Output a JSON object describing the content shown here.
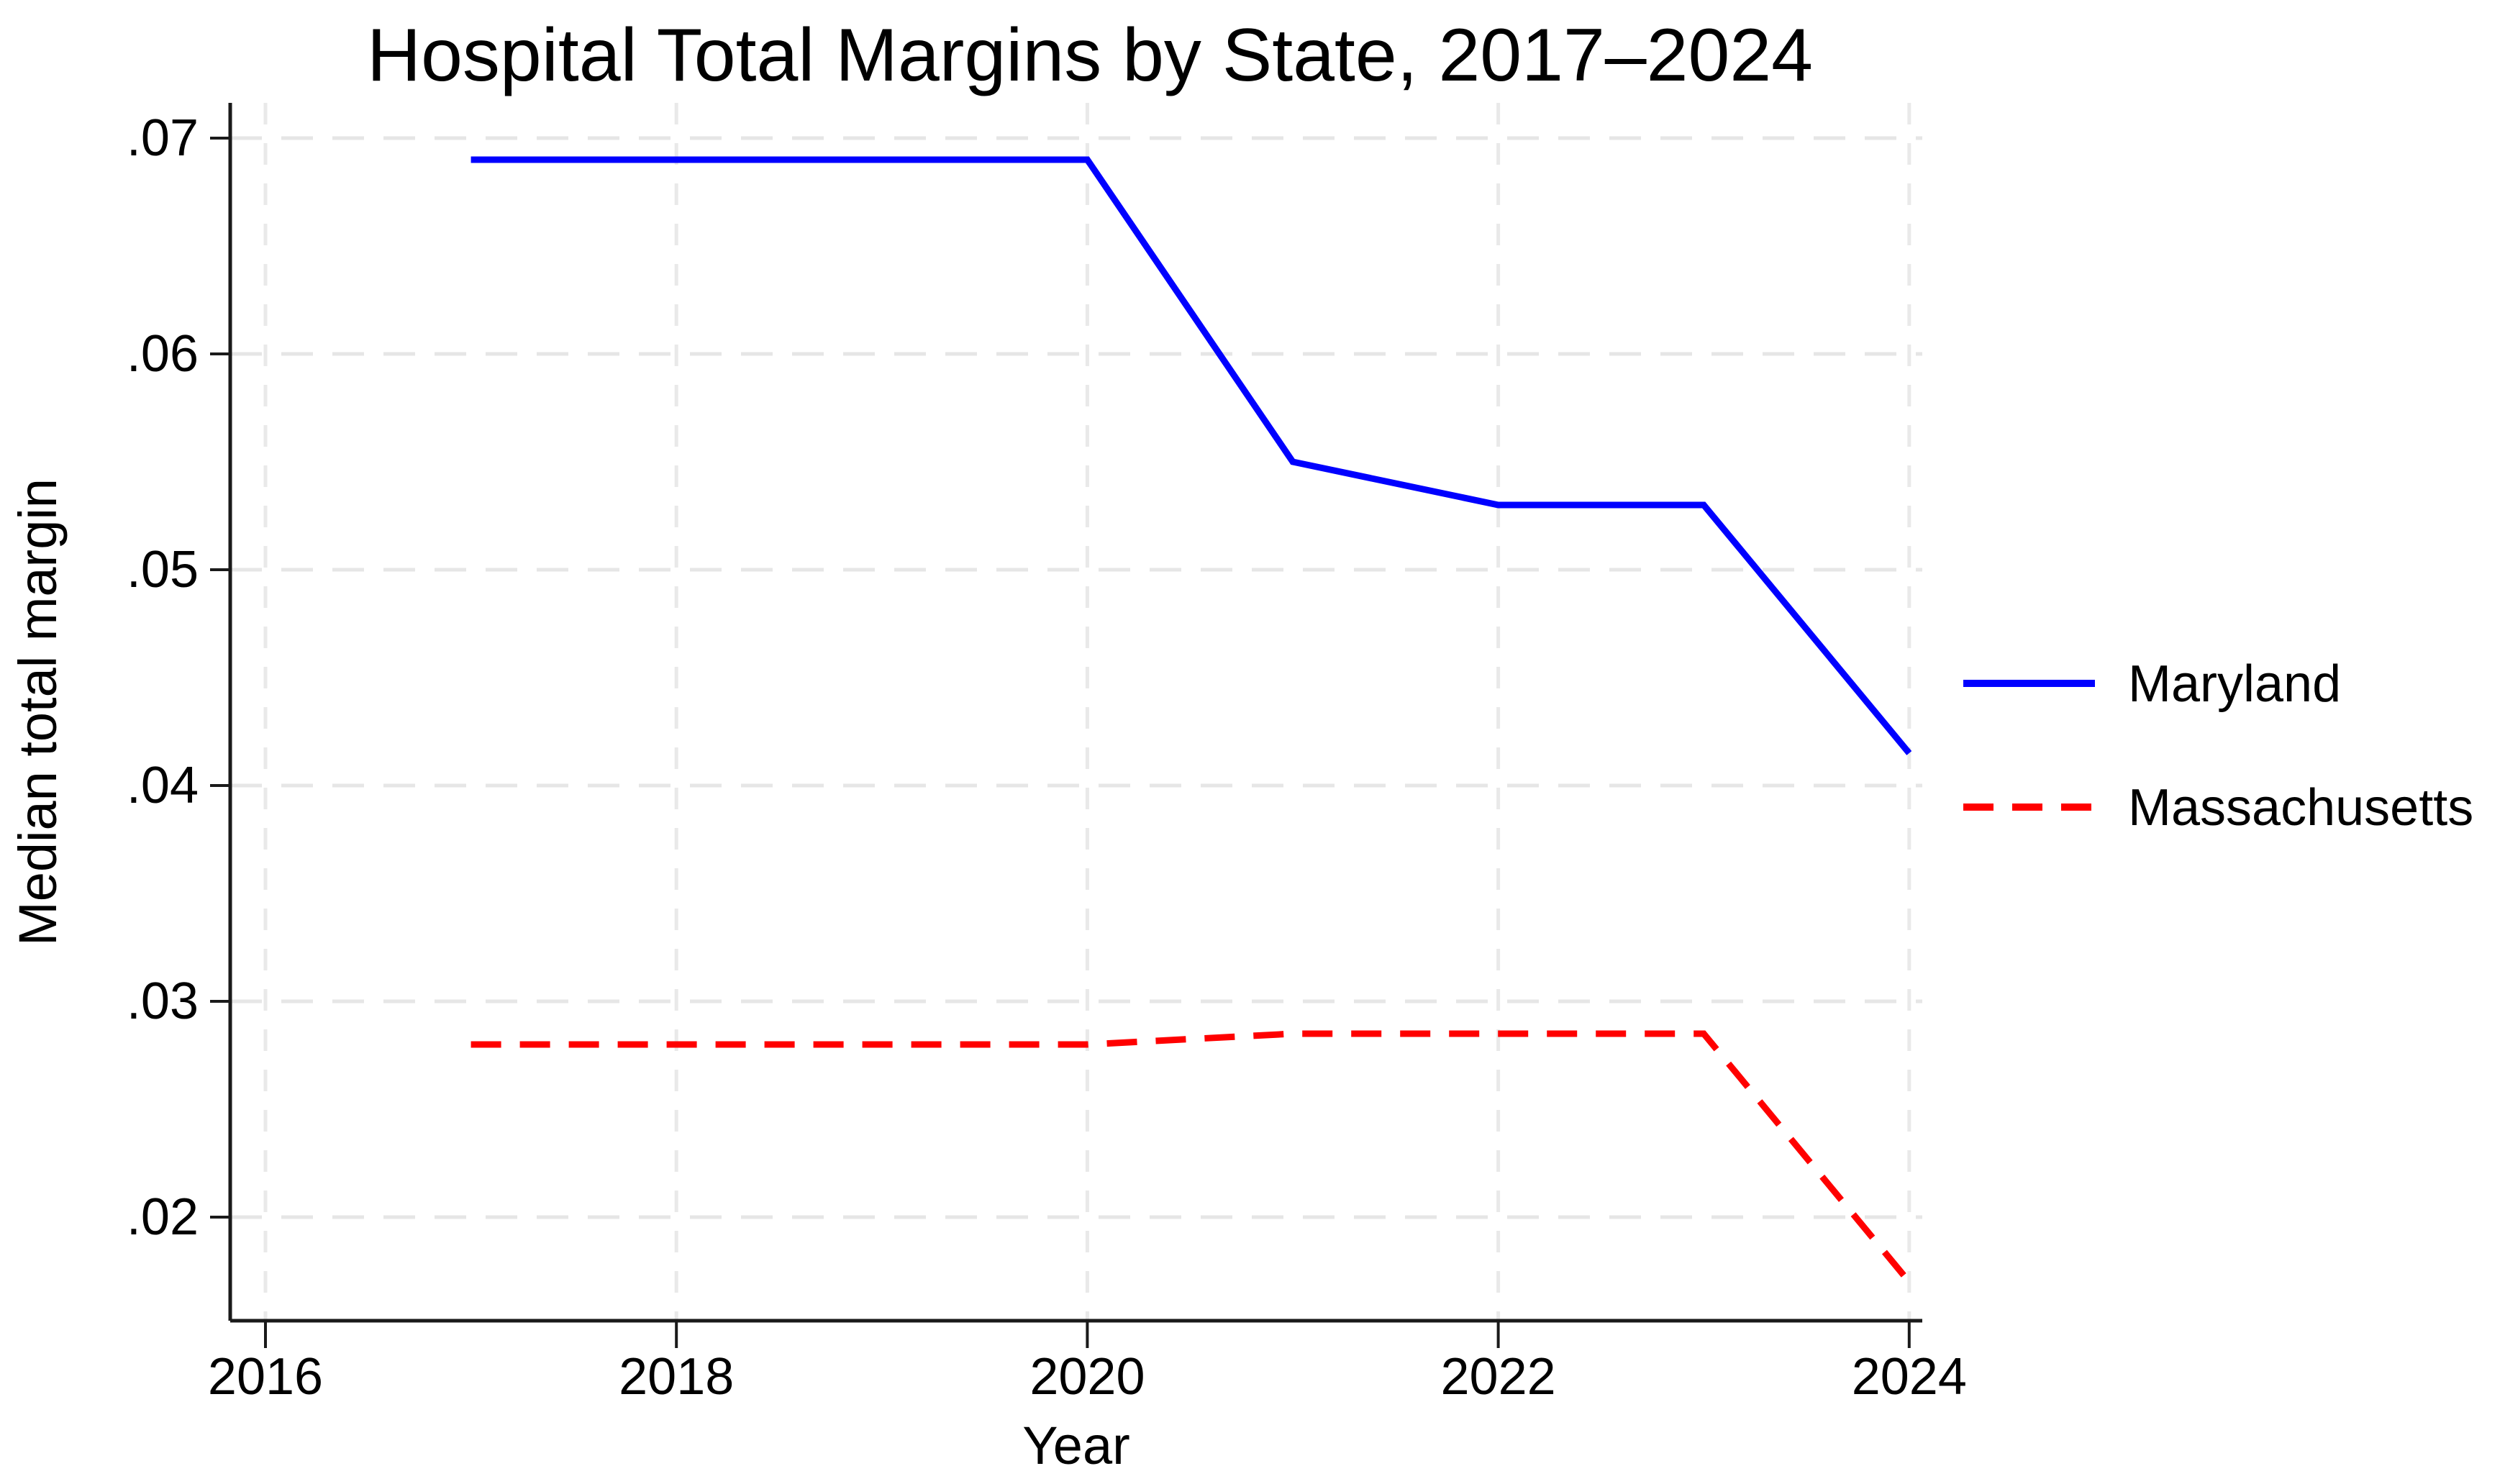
{
  "chart_data": {
    "type": "line",
    "title": "Hospital Total Margins by State, 2017–2024",
    "xlabel": "Year",
    "ylabel": "Median total margin",
    "x": [
      2017,
      2018,
      2019,
      2020,
      2021,
      2022,
      2023,
      2024
    ],
    "series": [
      {
        "name": "Maryland",
        "color": "#0000ff",
        "line_style": "solid",
        "values": [
          0.069,
          0.069,
          0.069,
          0.069,
          0.055,
          0.053,
          0.053,
          0.0415
        ]
      },
      {
        "name": "Massachusetts",
        "color": "#ff0000",
        "line_style": "dashed",
        "values": [
          0.028,
          0.028,
          0.028,
          0.028,
          0.0285,
          0.0285,
          0.0285,
          0.017
        ]
      }
    ],
    "x_ticks": [
      {
        "value": 2016,
        "label": "2016"
      },
      {
        "value": 2018,
        "label": "2018"
      },
      {
        "value": 2020,
        "label": "2020"
      },
      {
        "value": 2022,
        "label": "2022"
      },
      {
        "value": 2024,
        "label": "2024"
      }
    ],
    "y_ticks": [
      {
        "value": 0.07,
        "label": ".07"
      },
      {
        "value": 0.06,
        "label": ".06"
      },
      {
        "value": 0.05,
        "label": ".05"
      },
      {
        "value": 0.04,
        "label": ".04"
      },
      {
        "value": 0.03,
        "label": ".03"
      },
      {
        "value": 0.02,
        "label": ".02"
      }
    ],
    "xlim": [
      2015.83,
      2024.06
    ],
    "ylim": [
      0.0152,
      0.0716
    ],
    "grid": true,
    "legend_position": "right",
    "colors": {
      "background": "#ffffff",
      "axis": "#1a1a1a",
      "h_gridline": "#e6e6e6",
      "v_gridline": "#e9e9e9",
      "text": "#000000",
      "maryland_line": "#0000ff",
      "massachusetts_line": "#ff0000"
    }
  }
}
